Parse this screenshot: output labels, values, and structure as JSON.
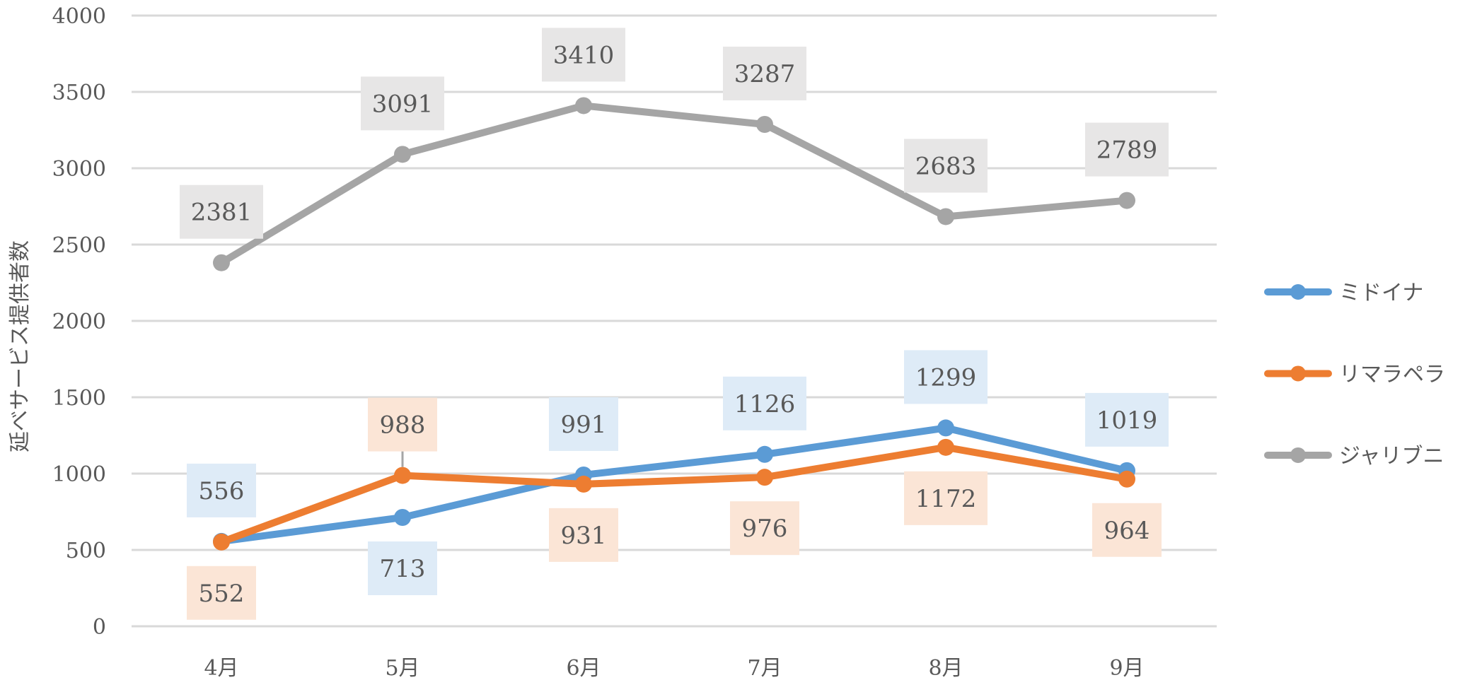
{
  "chart_data": {
    "type": "line",
    "title": "",
    "xlabel": "",
    "ylabel": "延べサービス提供者数",
    "categories": [
      "4月",
      "5月",
      "6月",
      "7月",
      "8月",
      "9月"
    ],
    "ylim": [
      0,
      4000
    ],
    "yticks": [
      0,
      500,
      1000,
      1500,
      2000,
      2500,
      3000,
      3500,
      4000
    ],
    "grid": true,
    "legend_position": "right",
    "series": [
      {
        "name": "ミドイナ",
        "color": "#5B9BD5",
        "label_bg": "#DEEBF7",
        "values": [
          556,
          713,
          991,
          1126,
          1299,
          1019
        ],
        "label_side": [
          "above",
          "below",
          "above",
          "above",
          "above",
          "above"
        ]
      },
      {
        "name": "リマラペラ",
        "color": "#ED7D31",
        "label_bg": "#FBE5D6",
        "values": [
          552,
          988,
          931,
          976,
          1172,
          964
        ],
        "label_side": [
          "below",
          "above",
          "below",
          "below",
          "below",
          "below"
        ]
      },
      {
        "name": "ジャリブニ",
        "color": "#A5A5A5",
        "label_bg": "#E7E6E6",
        "values": [
          2381,
          3091,
          3410,
          3287,
          2683,
          2789
        ],
        "label_side": [
          "above",
          "above",
          "above",
          "above",
          "above",
          "above"
        ]
      }
    ]
  }
}
